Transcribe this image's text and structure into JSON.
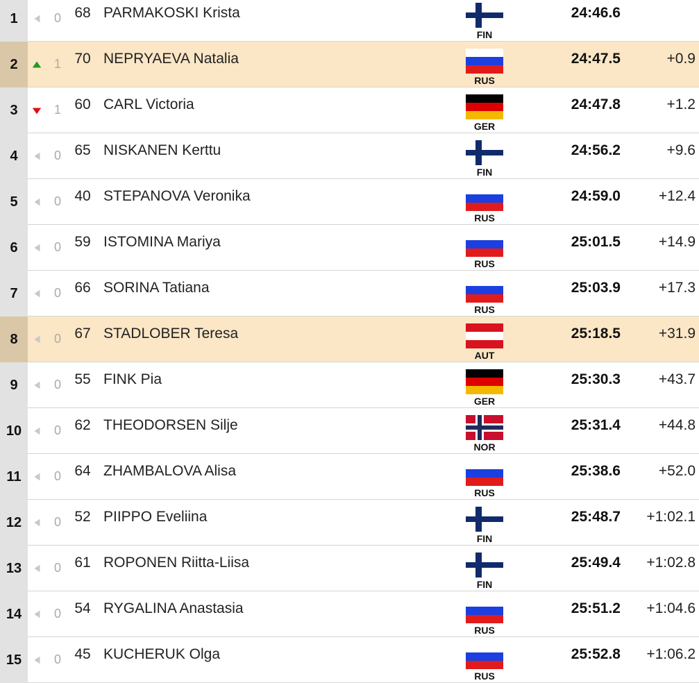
{
  "table": {
    "rows": [
      {
        "rank": 1,
        "direction": "same",
        "change": 0,
        "bib": 68,
        "name": "PARMAKOSKI Krista",
        "nation": "FIN",
        "time": "24:46.6",
        "highlight": false
      },
      {
        "rank": 2,
        "direction": "up",
        "change": 1,
        "bib": 70,
        "name": "NEPRYAEVA Natalia",
        "nation": "RUS",
        "time": "24:47.5",
        "gap": "+0.9",
        "highlight": true
      },
      {
        "rank": 3,
        "direction": "down",
        "change": 1,
        "bib": 60,
        "name": "CARL Victoria",
        "nation": "GER",
        "time": "24:47.8",
        "gap": "+1.2",
        "highlight": false
      },
      {
        "rank": 4,
        "direction": "same",
        "change": 0,
        "bib": 65,
        "name": "NISKANEN Kerttu",
        "nation": "FIN",
        "time": "24:56.2",
        "gap": "+9.6",
        "highlight": false
      },
      {
        "rank": 5,
        "direction": "same",
        "change": 0,
        "bib": 40,
        "name": "STEPANOVA Veronika",
        "nation": "RUS",
        "time": "24:59.0",
        "gap": "+12.4",
        "highlight": false
      },
      {
        "rank": 6,
        "direction": "same",
        "change": 0,
        "bib": 59,
        "name": "ISTOMINA Mariya",
        "nation": "RUS",
        "time": "25:01.5",
        "gap": "+14.9",
        "highlight": false
      },
      {
        "rank": 7,
        "direction": "same",
        "change": 0,
        "bib": 66,
        "name": "SORINA Tatiana",
        "nation": "RUS",
        "time": "25:03.9",
        "gap": "+17.3",
        "highlight": false
      },
      {
        "rank": 8,
        "direction": "same",
        "change": 0,
        "bib": 67,
        "name": "STADLOBER Teresa",
        "nation": "AUT",
        "time": "25:18.5",
        "gap": "+31.9",
        "highlight": true
      },
      {
        "rank": 9,
        "direction": "same",
        "change": 0,
        "bib": 55,
        "name": "FINK Pia",
        "nation": "GER",
        "time": "25:30.3",
        "gap": "+43.7",
        "highlight": false
      },
      {
        "rank": 10,
        "direction": "same",
        "change": 0,
        "bib": 62,
        "name": "THEODORSEN Silje",
        "nation": "NOR",
        "time": "25:31.4",
        "gap": "+44.8",
        "highlight": false
      },
      {
        "rank": 11,
        "direction": "same",
        "change": 0,
        "bib": 64,
        "name": "ZHAMBALOVA Alisa",
        "nation": "RUS",
        "time": "25:38.6",
        "gap": "+52.0",
        "highlight": false
      },
      {
        "rank": 12,
        "direction": "same",
        "change": 0,
        "bib": 52,
        "name": "PIIPPO Eveliina",
        "nation": "FIN",
        "time": "25:48.7",
        "gap": "+1:02.1",
        "highlight": false
      },
      {
        "rank": 13,
        "direction": "same",
        "change": 0,
        "bib": 61,
        "name": "ROPONEN Riitta-Liisa",
        "nation": "FIN",
        "time": "25:49.4",
        "gap": "+1:02.8",
        "highlight": false
      },
      {
        "rank": 14,
        "direction": "same",
        "change": 0,
        "bib": 54,
        "name": "RYGALINA Anastasia",
        "nation": "RUS",
        "time": "25:51.2",
        "gap": "+1:04.6",
        "highlight": false
      },
      {
        "rank": 15,
        "direction": "same",
        "change": 0,
        "bib": 45,
        "name": "KUCHERUK Olga",
        "nation": "RUS",
        "time": "25:52.8",
        "gap": "+1:06.2",
        "highlight": false
      }
    ]
  }
}
